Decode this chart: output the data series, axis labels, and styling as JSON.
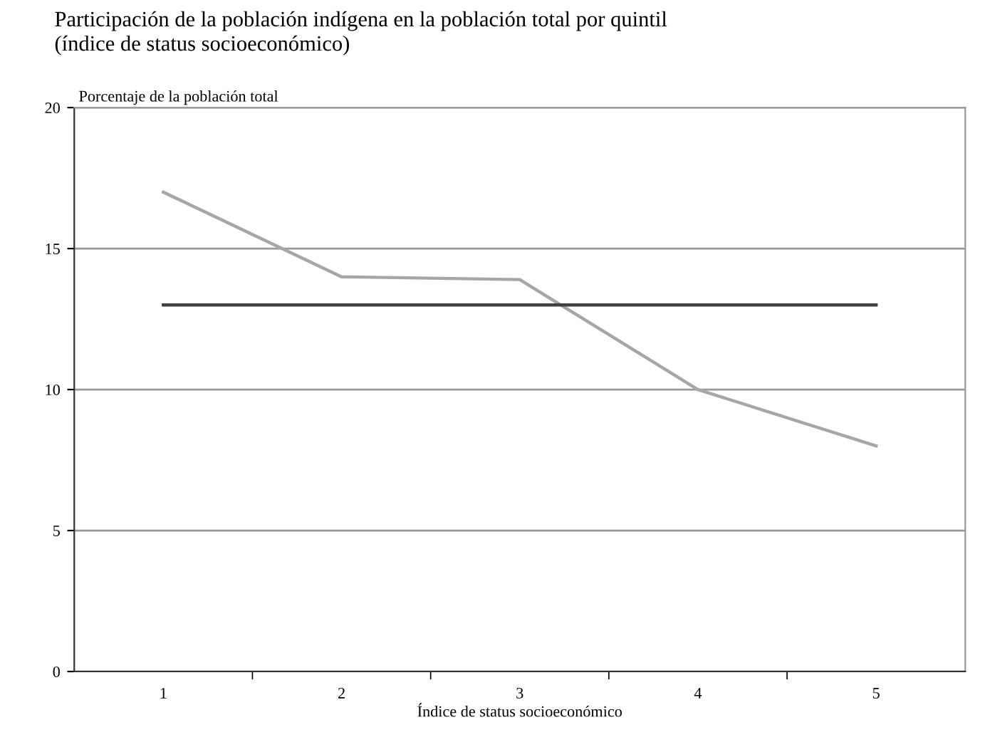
{
  "chart_data": {
    "type": "line",
    "title": "Participación de la población indígena en la población total por quintil\n(índice de status socioeconómico)",
    "ylabel": "Porcentaje de la población total",
    "xlabel": "Índice de status socioeconómico",
    "categories": [
      "1",
      "2",
      "3",
      "4",
      "5"
    ],
    "series": [
      {
        "color": "#a6a6a6",
        "values": [
          17,
          14,
          13.9,
          10,
          8
        ]
      },
      {
        "color": "#404040",
        "values": [
          13,
          13,
          13,
          13,
          13
        ]
      }
    ],
    "ylim": [
      0,
      20
    ],
    "yticks": [
      0,
      5,
      10,
      15,
      20
    ],
    "grid": "y",
    "marker": "none",
    "line_style": "solid"
  }
}
